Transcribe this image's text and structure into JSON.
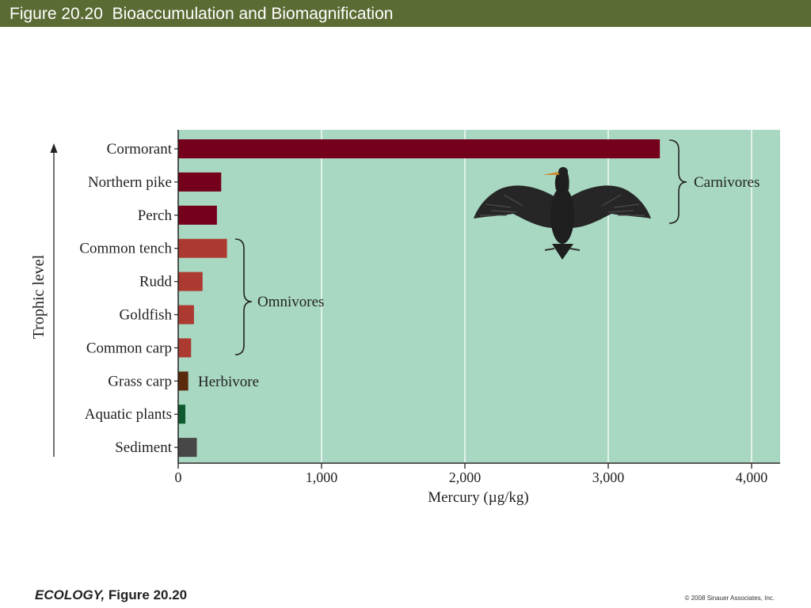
{
  "slide": {
    "title": "Figure 20.20  Bioaccumulation and Biomagnification"
  },
  "footer": {
    "book": "ECOLOGY,",
    "figure": " Figure 20.20",
    "copyright": "© 2008 Sinauer Associates, Inc."
  },
  "chart_data": {
    "type": "bar",
    "orientation": "horizontal",
    "categories": [
      "Cormorant",
      "Northern pike",
      "Perch",
      "Common tench",
      "Rudd",
      "Goldfish",
      "Common carp",
      "Grass carp",
      "Aquatic plants",
      "Sediment"
    ],
    "values": [
      3360,
      300,
      270,
      340,
      170,
      110,
      90,
      70,
      50,
      130
    ],
    "colors": [
      "#75001c",
      "#75001c",
      "#75001c",
      "#ad3a30",
      "#ad3a30",
      "#ad3a30",
      "#ad3a30",
      "#5b2a0c",
      "#0e5a2e",
      "#474747"
    ],
    "xlabel": "Mercury (µg/kg)",
    "ylabel": "Trophic level",
    "xlim": [
      0,
      4200
    ],
    "xticks": [
      0,
      1000,
      2000,
      3000,
      4000
    ],
    "xtick_labels": [
      "0",
      "1,000",
      "2,000",
      "3,000",
      "4,000"
    ],
    "grid": "vertical lines",
    "background_color": "#a8d8c2",
    "annotations": [
      {
        "label": "Carnivores",
        "categories": [
          "Cormorant",
          "Northern pike",
          "Perch"
        ]
      },
      {
        "label": "Omnivores",
        "categories": [
          "Common tench",
          "Rudd",
          "Goldfish",
          "Common carp"
        ]
      },
      {
        "label": "Herbivore",
        "categories": [
          "Grass carp"
        ]
      }
    ],
    "illustration": "cormorant-icon"
  }
}
